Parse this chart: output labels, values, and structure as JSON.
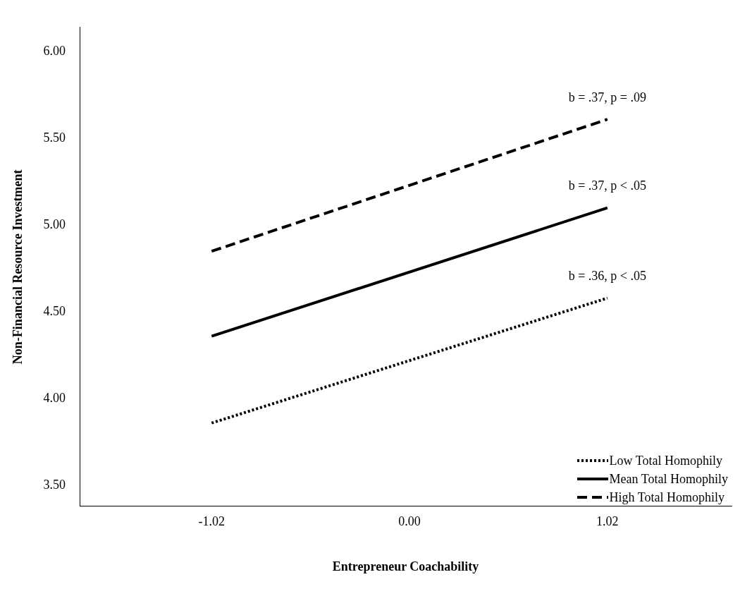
{
  "chart_data": {
    "type": "line",
    "xlabel": "Entrepreneur Coachability",
    "ylabel": "Non-Financial Resource Investment",
    "x": [
      -1.02,
      1.02
    ],
    "xlim": [
      -1.7,
      1.66
    ],
    "xticks": [
      {
        "value": -1.02,
        "label": "-1.02"
      },
      {
        "value": 0,
        "label": "0.00"
      },
      {
        "value": 1.02,
        "label": "1.02"
      }
    ],
    "ylim": [
      3.38,
      6.14
    ],
    "yticks": [
      {
        "value": 3.5,
        "label": "3.50"
      },
      {
        "value": 4,
        "label": "4.00"
      },
      {
        "value": 4.5,
        "label": "4.50"
      },
      {
        "value": 5,
        "label": "5.00"
      },
      {
        "value": 5.5,
        "label": "5.50"
      },
      {
        "value": 6,
        "label": "6.00"
      }
    ],
    "series": [
      {
        "name": "Low Total Homophily",
        "color": "#000000",
        "line_style": "dotted",
        "values": [
          3.86,
          4.58
        ]
      },
      {
        "name": "Mean Total Homophily",
        "color": "#000000",
        "line_style": "solid",
        "values": [
          4.36,
          5.1
        ]
      },
      {
        "name": "High Total Homophily",
        "color": "#000000",
        "line_style": "dashed",
        "values": [
          4.85,
          5.61
        ]
      }
    ],
    "annotations": [
      "b = .37, p = .09",
      "b = .37, p < .05",
      "b = .36, p < .05"
    ],
    "grid": false,
    "marker": "none",
    "legend": "bottom right"
  }
}
